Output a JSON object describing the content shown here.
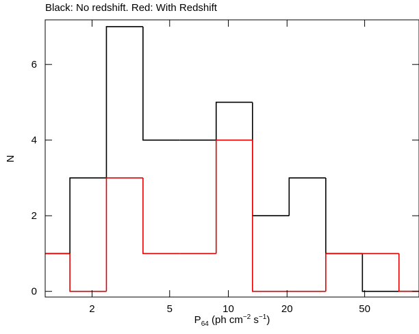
{
  "chart_data": {
    "type": "histogram",
    "title": "Black: No redshift. Red: With Redshift",
    "xlabel_parts": [
      "P",
      "64",
      " (ph cm",
      "−2",
      " s",
      "−1",
      ")"
    ],
    "ylabel": "N",
    "xscale": "log",
    "bins": [
      1.0,
      1.54,
      2.37,
      3.65,
      5.62,
      8.66,
      13.3,
      20.5,
      31.6,
      48.7,
      75.0,
      115.5
    ],
    "series": [
      {
        "name": "No redshift",
        "color": "#000000",
        "values": [
          1,
          3,
          7,
          4,
          4,
          5,
          2,
          3,
          1,
          0,
          0
        ]
      },
      {
        "name": "With Redshift",
        "color": "#e00000",
        "values": [
          1,
          0,
          3,
          1,
          1,
          4,
          0,
          0,
          1,
          1,
          0
        ]
      }
    ],
    "xlim": [
      1.15,
      95
    ],
    "xticks": [
      2,
      5,
      10,
      20,
      50
    ],
    "ylim": [
      -0.15,
      7.18
    ],
    "yticks": [
      0,
      2,
      4,
      6
    ]
  }
}
